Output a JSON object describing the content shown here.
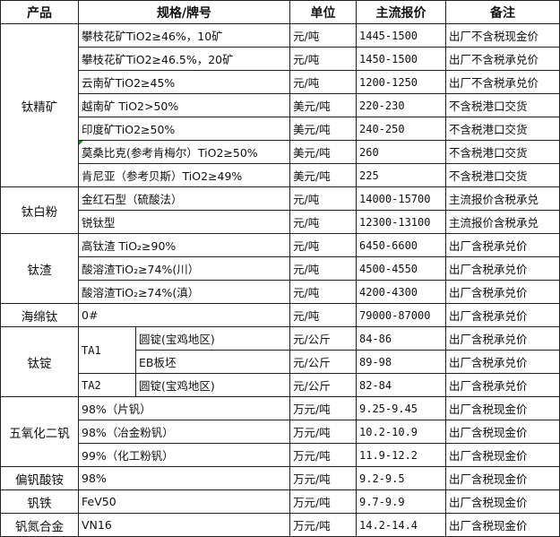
{
  "headers": {
    "product": "产品",
    "spec": "规格/牌号",
    "unit": "单位",
    "price": "主流报价",
    "note": "备注"
  },
  "groups": [
    {
      "product": "钛精矿",
      "rows": [
        {
          "spec": "攀枝花矿TiO2≥46%，10矿",
          "unit": "元/吨",
          "price": "1445-1500",
          "note": "出厂不含税现金价"
        },
        {
          "spec": "攀枝花矿TiO2≥46.5%，20矿",
          "unit": "元/吨",
          "price": "1450-1500",
          "note": "出厂不含税承兑价"
        },
        {
          "spec": "云南矿TiO2≥45%",
          "unit": "元/吨",
          "price": "1200-1250",
          "note": "出厂不含税承兑价"
        },
        {
          "spec": "越南矿 TiO2>50%",
          "unit": "美元/吨",
          "price": "220-230",
          "note": "不含税港口交货"
        },
        {
          "spec": "印度矿TiO2≥50%",
          "unit": "美元/吨",
          "price": "240-250",
          "note": "不含税港口交货"
        },
        {
          "spec": "莫桑比克(参考肯梅尔）TiO2≥50%",
          "unit": "美元/吨",
          "price": "260",
          "note": "不含税港口交货",
          "comment_marker": true
        },
        {
          "spec": "肯尼亚（参考贝斯）TiO2≥49%",
          "unit": "美元/吨",
          "price": "225",
          "note": "不含税港口交货"
        }
      ]
    },
    {
      "product": "钛白粉",
      "rows": [
        {
          "spec": "金红石型（硫酸法）",
          "unit": "元/吨",
          "price": "14000-15700",
          "note": "主流报价含税承兑"
        },
        {
          "spec": "锐钛型",
          "unit": "元/吨",
          "price": "12300-13100",
          "note": "主流报价含税承兑"
        }
      ]
    },
    {
      "product": "钛渣",
      "rows": [
        {
          "spec": "高钛渣 TiO₂≥90%",
          "unit": "元/吨",
          "price": "6450-6600",
          "note": "出厂含税承兑价"
        },
        {
          "spec": "酸溶渣TiO₂≥74%(川）",
          "unit": "元/吨",
          "price": "4500-4550",
          "note": "出厂含税承兑价"
        },
        {
          "spec": "酸溶渣TiO₂≥74%(滇）",
          "unit": "元/吨",
          "price": "4200-4300",
          "note": "出厂含税承兑价"
        }
      ]
    },
    {
      "product": "海绵钛",
      "rows": [
        {
          "spec": "0#",
          "unit": "元/吨",
          "price": "79000-87000",
          "note": "出厂含税承兑价"
        }
      ]
    },
    {
      "product": "钛锭",
      "rows": [
        {
          "grade": "TA1",
          "grade_span": 2,
          "spec": "圆锭(宝鸡地区)",
          "unit": "元/公斤",
          "price": "84-86",
          "note": "出厂含税承兑价"
        },
        {
          "spec": "EB板坯",
          "unit": "元/公斤",
          "price": "89-98",
          "note": "出厂含税承兑价"
        },
        {
          "grade": "TA2",
          "grade_span": 1,
          "spec": "圆锭(宝鸡地区)",
          "unit": "元/公斤",
          "price": "82-84",
          "note": "出厂含税承兑价"
        }
      ]
    },
    {
      "product": "五氧化二钒",
      "rows": [
        {
          "spec": "98%（片钒）",
          "unit": "万元/吨",
          "price": "9.25-9.45",
          "note": "出厂含税现金价"
        },
        {
          "spec": "98%（冶金粉钒）",
          "unit": "万元/吨",
          "price": "10.2-10.9",
          "note": "出厂含税现金价"
        },
        {
          "spec": "99%（化工粉钒）",
          "unit": "万元/吨",
          "price": "11.9-12.2",
          "note": "出厂含税现金价"
        }
      ]
    },
    {
      "product": "偏钒酸铵",
      "rows": [
        {
          "spec": "98%",
          "unit": "万元/吨",
          "price": "9.2-9.5",
          "note": "出厂含税现金价"
        }
      ]
    },
    {
      "product": "钒铁",
      "rows": [
        {
          "spec": "FeV50",
          "unit": "万元/吨",
          "price": "9.7-9.9",
          "note": "出厂含税现金价"
        }
      ]
    },
    {
      "product": "钒氮合金",
      "rows": [
        {
          "spec": "VN16",
          "unit": "万元/吨",
          "price": "14.2-14.4",
          "note": "出厂含税现金价"
        }
      ]
    }
  ]
}
